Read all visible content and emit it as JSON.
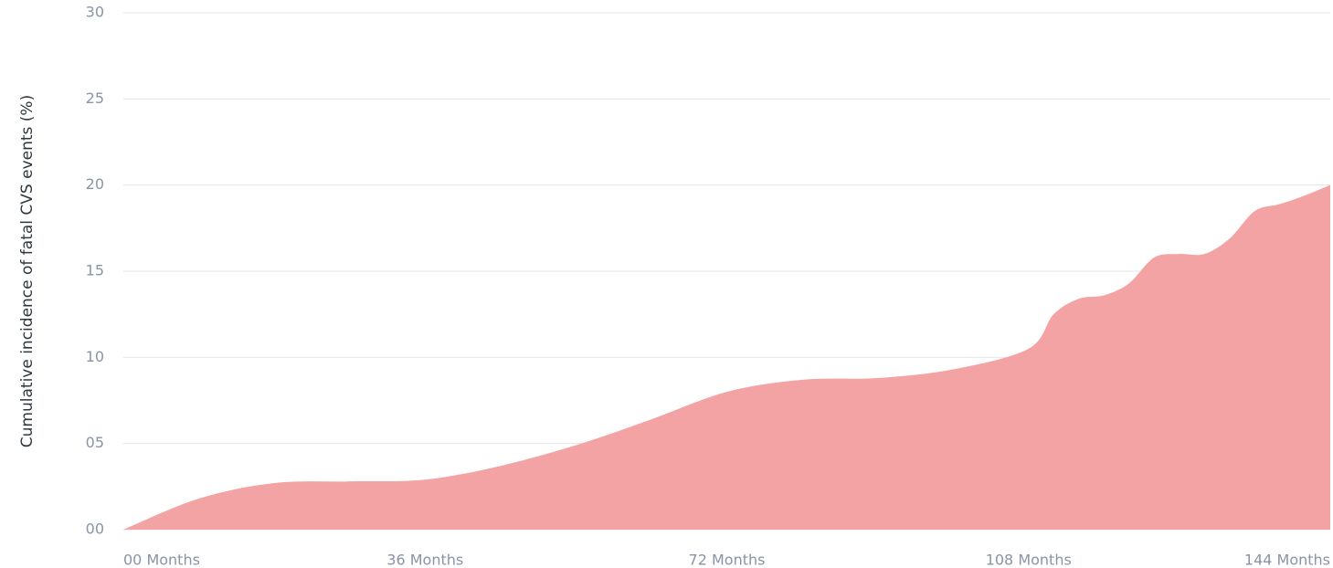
{
  "chart_data": {
    "type": "area",
    "y_label": "Cumulative incidence of fatal CVS events (%)",
    "x": [
      0,
      9,
      18,
      27,
      36,
      45,
      54,
      63,
      72,
      81,
      90,
      99,
      108,
      111,
      114,
      117,
      120,
      123,
      126,
      129,
      132,
      135,
      138,
      141,
      144
    ],
    "values": [
      0,
      1.8,
      2.7,
      2.8,
      2.9,
      3.7,
      4.9,
      6.4,
      8.0,
      8.7,
      8.8,
      9.3,
      10.5,
      12.5,
      13.4,
      13.6,
      14.3,
      15.8,
      16.0,
      16.0,
      16.9,
      18.5,
      18.9,
      19.4,
      20.0
    ],
    "color": "#f4a3a4",
    "xlim": [
      0,
      144
    ],
    "xticks": [
      {
        "value": 0,
        "label": "00 Months"
      },
      {
        "value": 36,
        "label": "36 Months"
      },
      {
        "value": 72,
        "label": "72 Months"
      },
      {
        "value": 108,
        "label": "108 Months"
      },
      {
        "value": 144,
        "label": "144 Months"
      }
    ],
    "ylim": [
      0,
      30
    ],
    "yticks": [
      {
        "value": 0,
        "label": "00"
      },
      {
        "value": 5,
        "label": "05"
      },
      10,
      15,
      20,
      25,
      30
    ],
    "grid": true
  }
}
